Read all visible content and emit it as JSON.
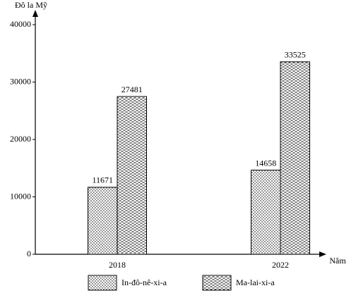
{
  "chart_data": {
    "type": "bar",
    "y_label": "Đô la Mỹ",
    "x_label": "Năm",
    "categories": [
      "2018",
      "2022"
    ],
    "series": [
      {
        "name": "In-đô-nê-xi-a",
        "color": "#000000",
        "pattern": "dots",
        "values": [
          11671,
          14658
        ]
      },
      {
        "name": "Ma-lai-xi-a",
        "color": "#000000",
        "pattern": "dashes",
        "values": [
          27481,
          33525
        ]
      }
    ],
    "ylim": [
      0,
      40000
    ],
    "yticks": [
      0,
      10000,
      20000,
      30000,
      40000
    ],
    "grid": false
  }
}
